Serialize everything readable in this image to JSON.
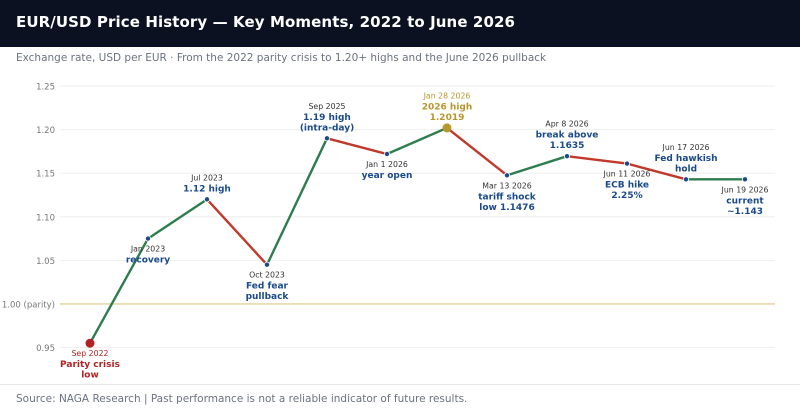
{
  "header": {
    "title": "EUR/USD Price History — Key Moments, 2022 to June 2026",
    "subtitle": "Exchange rate, USD per EUR · From the 2022 parity crisis to 1.20+ highs and the June 2026 pullback"
  },
  "footer": {
    "source": "Source: NAGA Research  |  Past performance is not a reliable indicator of future results."
  },
  "colors": {
    "up": "#2e7d4f",
    "down": "#c0392b",
    "label_blue": "#1a4a8a",
    "label_red": "#b22222",
    "label_gold": "#b8962e",
    "parity_line": "#e6d9a8",
    "grid": "#eeeeee"
  },
  "chart_data": {
    "type": "line",
    "ylim": [
      0.93,
      1.25
    ],
    "yticks": [
      0.95,
      1.0,
      1.05,
      1.1,
      1.15,
      1.2,
      1.25
    ],
    "ytick_labels": [
      "0.95",
      "1.00 (parity)",
      "1.05",
      "1.10",
      "1.15",
      "1.20",
      "1.25"
    ],
    "parity_level": 1.0,
    "points": [
      {
        "date": "Sep 2022",
        "value": 0.955,
        "label": [
          "Parity crisis",
          "low"
        ],
        "label_color": "red",
        "marker": "big-red",
        "label_pos": "below"
      },
      {
        "date": "Jan 2023",
        "value": 1.075,
        "label": [
          "recovery"
        ],
        "label_color": "blue",
        "marker": "small",
        "label_pos": "below"
      },
      {
        "date": "Jul 2023",
        "value": 1.12,
        "label": [
          "1.12 high"
        ],
        "label_color": "blue",
        "marker": "small",
        "label_pos": "above"
      },
      {
        "date": "Oct 2023",
        "value": 1.045,
        "label": [
          "Fed fear",
          "pullback"
        ],
        "label_color": "blue",
        "marker": "small",
        "label_pos": "below"
      },
      {
        "date": "Sep 2025",
        "value": 1.19,
        "label": [
          "1.19 high",
          "(intra-day)"
        ],
        "label_color": "blue",
        "marker": "small",
        "label_pos": "above"
      },
      {
        "date": "Jan 1 2026",
        "value": 1.172,
        "label": [
          "year open"
        ],
        "label_color": "blue",
        "marker": "small",
        "label_pos": "below"
      },
      {
        "date": "Jan 28 2026",
        "value": 1.2019,
        "label": [
          "2026 high",
          "1.2019"
        ],
        "label_color": "gold",
        "marker": "big-gold",
        "label_pos": "above"
      },
      {
        "date": "Mar 13 2026",
        "value": 1.1476,
        "label": [
          "tariff shock",
          "low 1.1476"
        ],
        "label_color": "blue",
        "marker": "small",
        "label_pos": "below"
      },
      {
        "date": "Apr 8 2026",
        "value": 1.1695,
        "label": [
          "break above",
          "1.1635"
        ],
        "label_color": "blue",
        "marker": "small",
        "label_pos": "above"
      },
      {
        "date": "Jun 11 2026",
        "value": 1.161,
        "label": [
          "ECB hike",
          "2.25%"
        ],
        "label_color": "blue",
        "marker": "small",
        "label_pos": "below"
      },
      {
        "date": "Jun 17 2026",
        "value": 1.143,
        "label": [
          "Fed hawkish",
          "hold"
        ],
        "label_color": "blue",
        "marker": "small",
        "label_pos": "above"
      },
      {
        "date": "Jun 19 2026",
        "value": 1.143,
        "label": [
          "current",
          "~1.143"
        ],
        "label_color": "blue",
        "marker": "small",
        "label_pos": "below"
      }
    ]
  }
}
